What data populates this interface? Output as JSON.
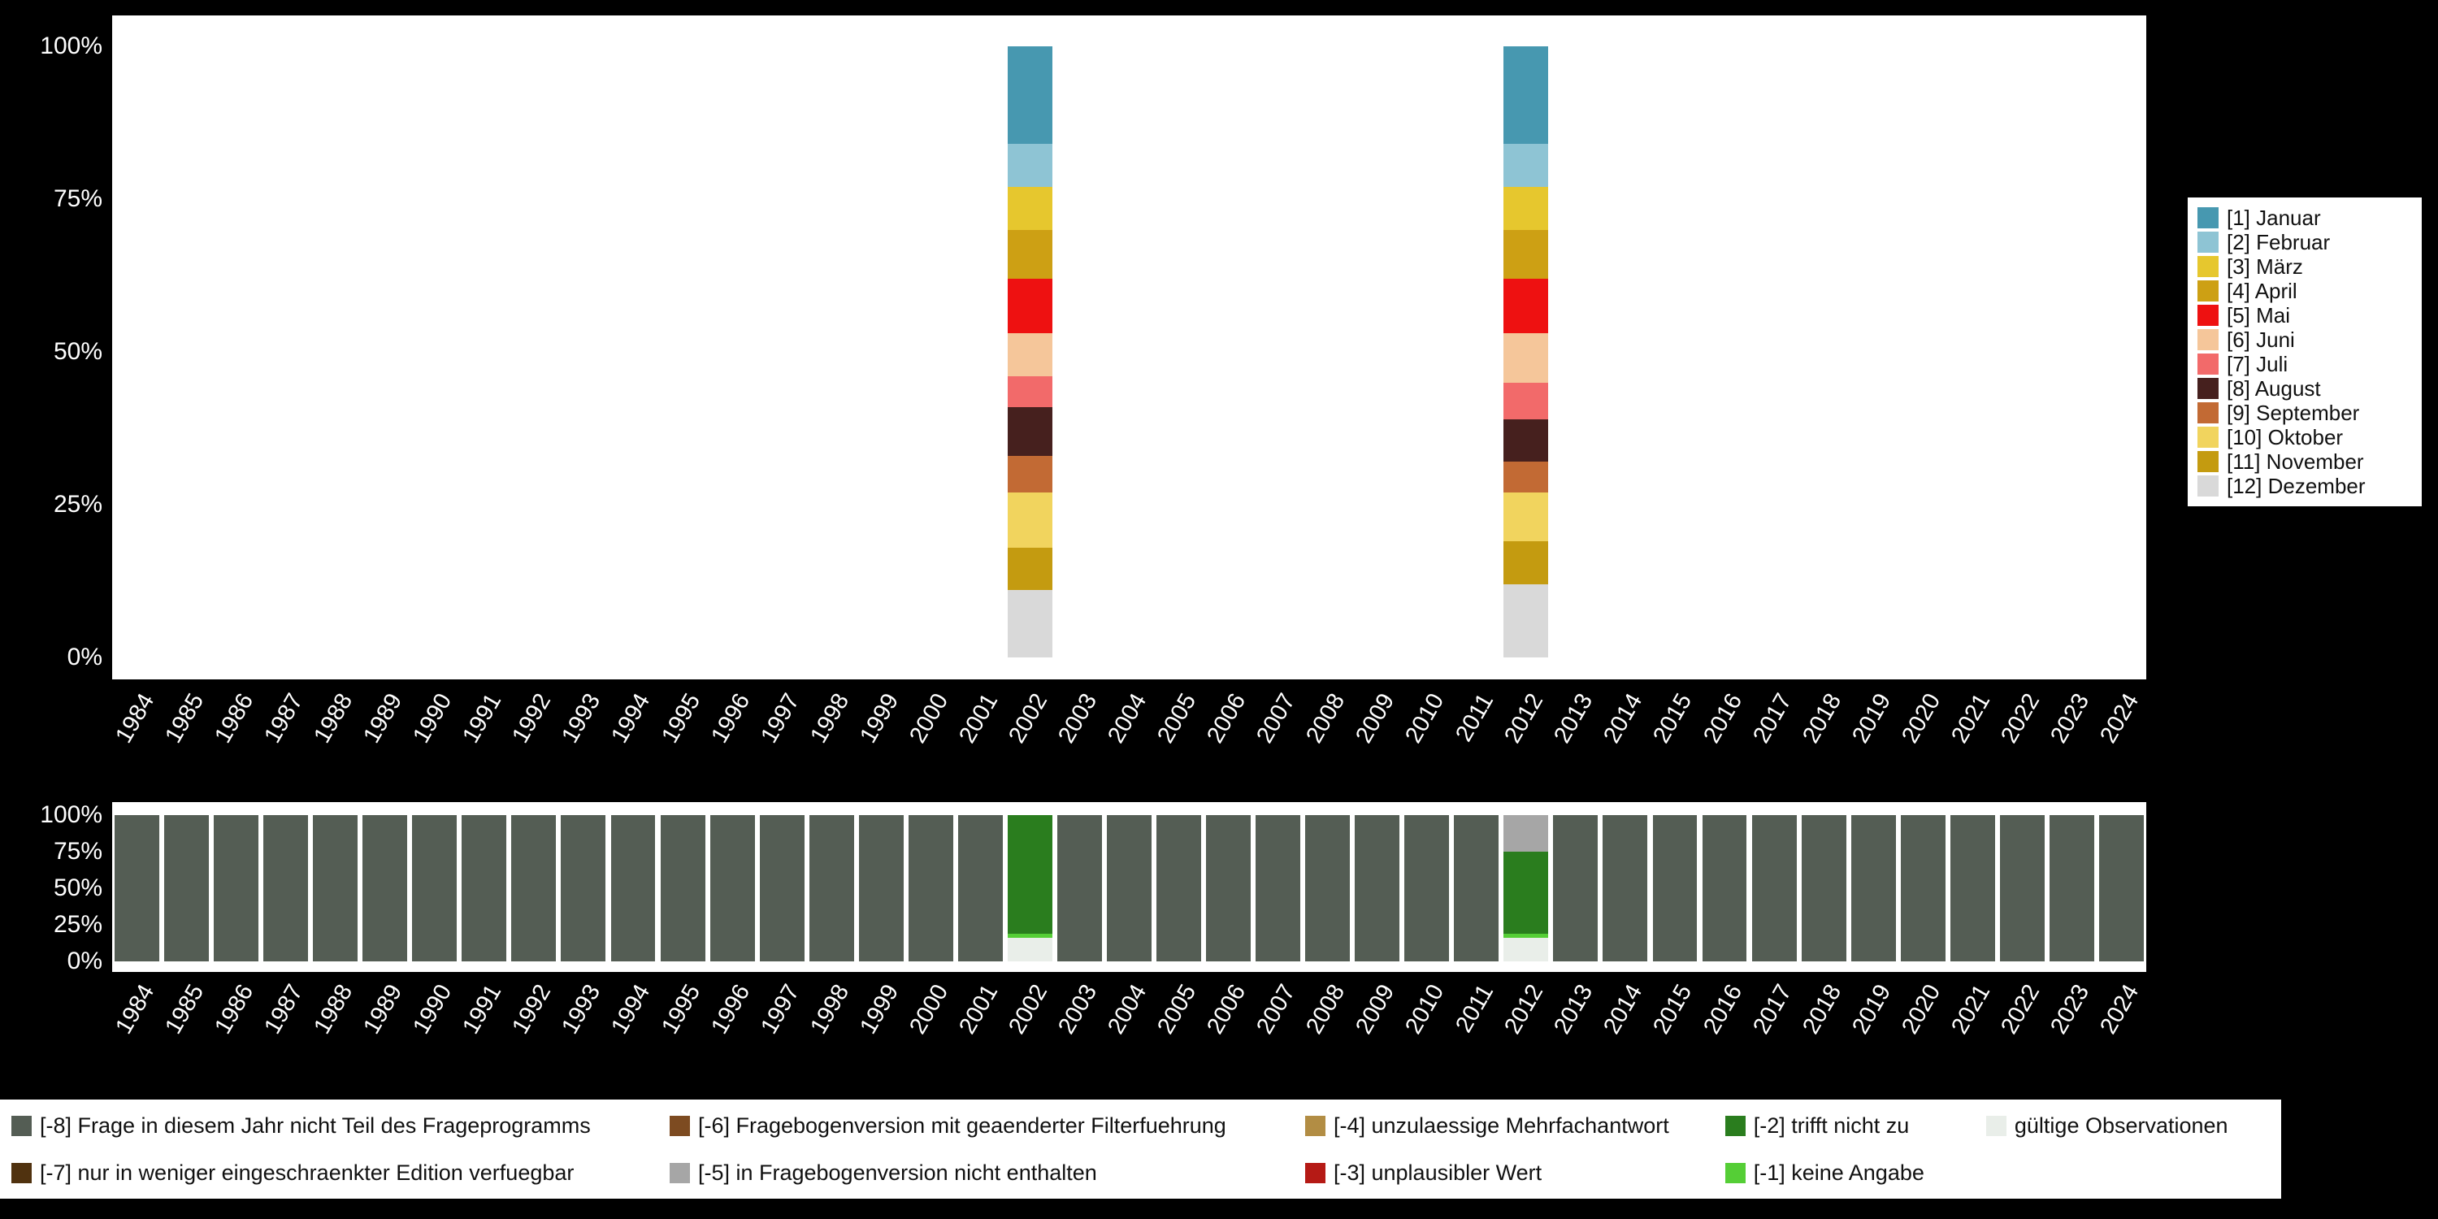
{
  "background": "#000000",
  "panel_background": "#ffffff",
  "axes": {
    "y_ticks": [
      "100%",
      "75%",
      "50%",
      "25%",
      "0%"
    ],
    "years": [
      "1984",
      "1985",
      "1986",
      "1987",
      "1988",
      "1989",
      "1990",
      "1991",
      "1992",
      "1993",
      "1994",
      "1995",
      "1996",
      "1997",
      "1998",
      "1999",
      "2000",
      "2001",
      "2002",
      "2003",
      "2004",
      "2005",
      "2006",
      "2007",
      "2008",
      "2009",
      "2010",
      "2011",
      "2012",
      "2013",
      "2014",
      "2015",
      "2016",
      "2017",
      "2018",
      "2019",
      "2020",
      "2021",
      "2022",
      "2023",
      "2024"
    ]
  },
  "chart_data": [
    {
      "type": "bar",
      "name": "month-distribution",
      "stacked": true,
      "unit": "percent",
      "ylim": [
        0,
        100
      ],
      "legend_position": "right",
      "grid": false,
      "categories_ref": "axes.years",
      "series": [
        {
          "name": "[1] Januar",
          "color": "#4798b0",
          "default": 0,
          "values_by_year": {
            "2002": 16,
            "2012": 16
          }
        },
        {
          "name": "[2] Februar",
          "color": "#8ec4d4",
          "default": 0,
          "values_by_year": {
            "2002": 7,
            "2012": 7
          }
        },
        {
          "name": "[3] März",
          "color": "#e6c72e",
          "default": 0,
          "values_by_year": {
            "2002": 7,
            "2012": 7
          }
        },
        {
          "name": "[4] April",
          "color": "#cda014",
          "default": 0,
          "values_by_year": {
            "2002": 8,
            "2012": 8
          }
        },
        {
          "name": "[5] Mai",
          "color": "#ee1111",
          "default": 0,
          "values_by_year": {
            "2002": 9,
            "2012": 9
          }
        },
        {
          "name": "[6] Juni",
          "color": "#f5c69a",
          "default": 0,
          "values_by_year": {
            "2002": 7,
            "2012": 8
          }
        },
        {
          "name": "[7] Juli",
          "color": "#f26a6a",
          "default": 0,
          "values_by_year": {
            "2002": 5,
            "2012": 6
          }
        },
        {
          "name": "[8] August",
          "color": "#46201e",
          "default": 0,
          "values_by_year": {
            "2002": 8,
            "2012": 7
          }
        },
        {
          "name": "[9] September",
          "color": "#c26a34",
          "default": 0,
          "values_by_year": {
            "2002": 6,
            "2012": 5
          }
        },
        {
          "name": "[10] Oktober",
          "color": "#f1d45e",
          "default": 0,
          "values_by_year": {
            "2002": 9,
            "2012": 8
          }
        },
        {
          "name": "[11] November",
          "color": "#c49b10",
          "default": 0,
          "values_by_year": {
            "2002": 7,
            "2012": 7
          }
        },
        {
          "name": "[12] Dezember",
          "color": "#d9d9d9",
          "default": 0,
          "values_by_year": {
            "2002": 11,
            "2012": 12
          }
        }
      ]
    },
    {
      "type": "bar",
      "name": "missing-values",
      "stacked": true,
      "unit": "percent",
      "ylim": [
        0,
        100
      ],
      "legend_position": "bottom",
      "grid": false,
      "categories_ref": "axes.years",
      "series": [
        {
          "name": "[-8] Frage in diesem Jahr nicht Teil des Frageprogramms",
          "color": "#545d54",
          "default": 100,
          "values_by_year": {
            "2002": 0,
            "2012": 0
          }
        },
        {
          "name": "[-7] nur in weniger eingeschraenkter Edition verfuegbar",
          "color": "#50320f",
          "default": 0,
          "values_by_year": {}
        },
        {
          "name": "[-6] Fragebogenversion mit geaenderter Filterfuehrung",
          "color": "#7d4b21",
          "default": 0,
          "values_by_year": {}
        },
        {
          "name": "[-5] in Fragebogenversion nicht enthalten",
          "color": "#a6a6a6",
          "default": 0,
          "values_by_year": {
            "2012": 25
          }
        },
        {
          "name": "[-4] unzulaessige Mehrfachantwort",
          "color": "#b28d44",
          "default": 0,
          "values_by_year": {}
        },
        {
          "name": "[-3] unplausibler Wert",
          "color": "#b51a15",
          "default": 0,
          "values_by_year": {}
        },
        {
          "name": "[-2] trifft nicht zu",
          "color": "#2a7d1e",
          "default": 0,
          "values_by_year": {
            "2002": 81,
            "2012": 56
          }
        },
        {
          "name": "[-1] keine Angabe",
          "color": "#55ce36",
          "default": 0,
          "values_by_year": {
            "2002": 3,
            "2012": 3
          }
        },
        {
          "name": "gültige Observationen",
          "color": "#e9eee9",
          "default": 0,
          "values_by_year": {
            "2002": 16,
            "2012": 16
          }
        }
      ]
    }
  ],
  "legend_missing_columns": [
    [
      "[-8] Frage in diesem Jahr nicht Teil des Frageprogramms",
      "[-7] nur in weniger eingeschraenkter Edition verfuegbar"
    ],
    [
      "[-6] Fragebogenversion mit geaenderter Filterfuehrung",
      "[-5] in Fragebogenversion nicht enthalten"
    ],
    [
      "[-4] unzulaessige Mehrfachantwort",
      "[-3] unplausibler Wert"
    ],
    [
      "[-2] trifft nicht zu",
      "[-1] keine Angabe"
    ],
    [
      "gültige Observationen"
    ]
  ]
}
